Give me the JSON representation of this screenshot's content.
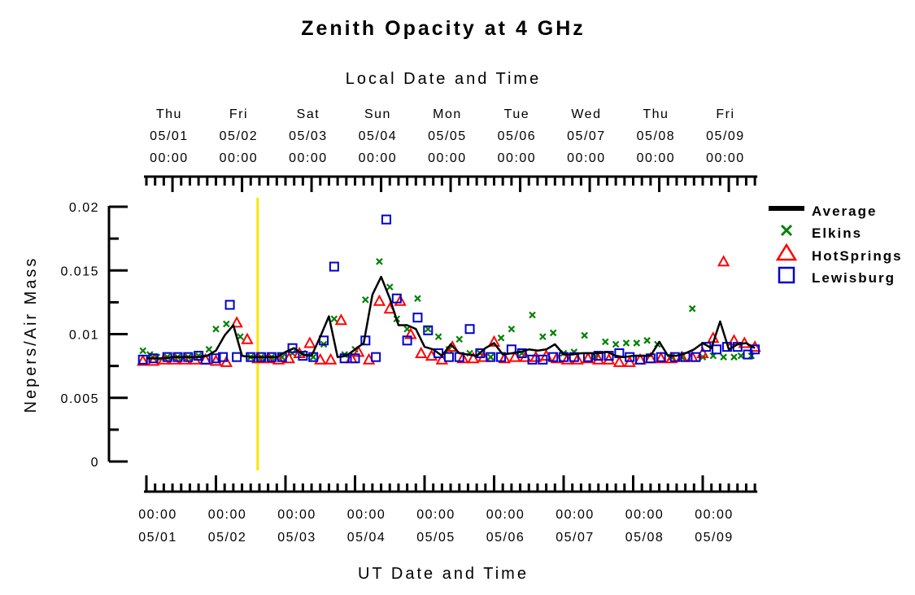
{
  "chart_data": {
    "type": "scatter",
    "title": "Zenith Opacity at 4 GHz",
    "top_axis_title": "Local Date and Time",
    "xlabel": "UT Date and Time",
    "ylabel": "Nepers/Air Mass",
    "ylim": [
      0,
      0.02
    ],
    "yticks": [
      "0",
      "0.005",
      "0.01",
      "0.015",
      "0.02"
    ],
    "ytick_values": [
      0,
      0.005,
      0.01,
      0.015,
      0.02
    ],
    "xlim": [
      0,
      8.75
    ],
    "x_units": "days after 05/01 00:00 UT",
    "top_ticks": [
      {
        "day": "Thu",
        "date": "05/01",
        "time": "00:00"
      },
      {
        "day": "Fri",
        "date": "05/02",
        "time": "00:00"
      },
      {
        "day": "Sat",
        "date": "05/03",
        "time": "00:00"
      },
      {
        "day": "Sun",
        "date": "05/04",
        "time": "00:00"
      },
      {
        "day": "Mon",
        "date": "05/05",
        "time": "00:00"
      },
      {
        "day": "Tue",
        "date": "05/06",
        "time": "00:00"
      },
      {
        "day": "Wed",
        "date": "05/07",
        "time": "00:00"
      },
      {
        "day": "Thu",
        "date": "05/08",
        "time": "00:00"
      },
      {
        "day": "Fri",
        "date": "05/09",
        "time": "00:00"
      }
    ],
    "top_tick_x": [
      0.35,
      1.35,
      2.35,
      3.35,
      4.35,
      5.35,
      6.35,
      7.35,
      8.35
    ],
    "bottom_ticks": [
      {
        "time": "00:00",
        "date": "05/01"
      },
      {
        "time": "00:00",
        "date": "05/02"
      },
      {
        "time": "00:00",
        "date": "05/03"
      },
      {
        "time": "00:00",
        "date": "05/04"
      },
      {
        "time": "00:00",
        "date": "05/05"
      },
      {
        "time": "00:00",
        "date": "05/06"
      },
      {
        "time": "00:00",
        "date": "05/07"
      },
      {
        "time": "00:00",
        "date": "05/08"
      },
      {
        "time": "00:00",
        "date": "05/09"
      }
    ],
    "bottom_tick_x": [
      0,
      1,
      2,
      3,
      4,
      5,
      6,
      7,
      8
    ],
    "marker_x": 1.6,
    "marker_color": "#f5e800",
    "legend_position": "right",
    "series": [
      {
        "name": "Average",
        "style": "line",
        "color": "#000000",
        "x": [
          0,
          0.125,
          0.25,
          0.375,
          0.5,
          0.625,
          0.75,
          0.875,
          1.0,
          1.125,
          1.25,
          1.375,
          1.5,
          1.625,
          1.75,
          1.875,
          2.0,
          2.125,
          2.25,
          2.375,
          2.5,
          2.625,
          2.75,
          2.875,
          3.0,
          3.125,
          3.25,
          3.375,
          3.5,
          3.625,
          3.75,
          3.875,
          4.0,
          4.125,
          4.25,
          4.375,
          4.5,
          4.625,
          4.75,
          4.875,
          5.0,
          5.125,
          5.25,
          5.375,
          5.5,
          5.625,
          5.75,
          5.875,
          6.0,
          6.125,
          6.25,
          6.375,
          6.5,
          6.625,
          6.75,
          6.875,
          7.0,
          7.125,
          7.25,
          7.375,
          7.5,
          7.625,
          7.75,
          7.875,
          8.0,
          8.125,
          8.25,
          8.375,
          8.5,
          8.625,
          8.75
        ],
        "y": [
          0.0081,
          0.0081,
          0.0081,
          0.0082,
          0.0082,
          0.0082,
          0.0082,
          0.0083,
          0.0087,
          0.0099,
          0.0107,
          0.0083,
          0.0082,
          0.0082,
          0.0082,
          0.0082,
          0.0086,
          0.0089,
          0.0084,
          0.0083,
          0.0098,
          0.0114,
          0.0082,
          0.0083,
          0.0088,
          0.0093,
          0.0131,
          0.0145,
          0.0128,
          0.0107,
          0.0107,
          0.0104,
          0.009,
          0.0088,
          0.0083,
          0.0092,
          0.0085,
          0.0084,
          0.0083,
          0.0089,
          0.0093,
          0.0084,
          0.0085,
          0.0086,
          0.0088,
          0.0087,
          0.0088,
          0.0092,
          0.0084,
          0.0084,
          0.0085,
          0.0085,
          0.0085,
          0.0086,
          0.0083,
          0.0082,
          0.0083,
          0.0083,
          0.0083,
          0.0094,
          0.0083,
          0.0083,
          0.0085,
          0.0088,
          0.0093,
          0.0089,
          0.011,
          0.0088,
          0.0092,
          0.0093,
          0.0089
        ]
      },
      {
        "name": "Elkins",
        "style": "x",
        "color": "#008000",
        "x": [
          -0.05,
          0.05,
          0.15,
          0.3,
          0.45,
          0.6,
          0.75,
          0.9,
          1.0,
          1.15,
          1.35,
          1.5,
          1.65,
          1.8,
          1.95,
          2.1,
          2.25,
          2.4,
          2.55,
          2.7,
          2.85,
          3.0,
          3.15,
          3.35,
          3.5,
          3.6,
          3.75,
          3.9,
          4.05,
          4.2,
          4.35,
          4.5,
          4.65,
          4.8,
          4.95,
          5.1,
          5.25,
          5.4,
          5.55,
          5.7,
          5.85,
          6.0,
          6.15,
          6.3,
          6.45,
          6.6,
          6.75,
          6.9,
          7.05,
          7.2,
          7.35,
          7.55,
          7.7,
          7.85,
          8.0,
          8.15,
          8.3,
          8.45,
          8.55,
          8.7
        ],
        "y": [
          0.0087,
          0.0084,
          0.0082,
          0.0082,
          0.0082,
          0.0082,
          0.0083,
          0.0088,
          0.0104,
          0.0108,
          0.0098,
          0.0082,
          0.0082,
          0.0082,
          0.0082,
          0.0085,
          0.0085,
          0.0082,
          0.0092,
          0.0112,
          0.0084,
          0.0088,
          0.0127,
          0.0157,
          0.0137,
          0.0112,
          0.0104,
          0.0128,
          0.0104,
          0.0098,
          0.0088,
          0.0096,
          0.0085,
          0.0085,
          0.0082,
          0.0097,
          0.0104,
          0.0085,
          0.0115,
          0.0098,
          0.0101,
          0.0085,
          0.0086,
          0.0099,
          0.0082,
          0.0094,
          0.0092,
          0.0093,
          0.0093,
          0.0095,
          0.0092,
          0.0082,
          0.0082,
          0.012,
          0.0082,
          0.0083,
          0.0082,
          0.0082,
          0.0083,
          0.0083
        ]
      },
      {
        "name": "HotSprings",
        "style": "triangle",
        "color": "#ff0000",
        "x": [
          -0.05,
          0.1,
          0.25,
          0.4,
          0.55,
          0.7,
          0.85,
          1.0,
          1.15,
          1.3,
          1.45,
          1.6,
          1.75,
          1.9,
          2.05,
          2.2,
          2.35,
          2.5,
          2.65,
          2.8,
          2.95,
          3.05,
          3.2,
          3.35,
          3.5,
          3.65,
          3.8,
          3.95,
          4.1,
          4.25,
          4.4,
          4.55,
          4.7,
          4.85,
          5.0,
          5.15,
          5.3,
          5.45,
          5.6,
          5.75,
          5.9,
          6.05,
          6.2,
          6.35,
          6.5,
          6.65,
          6.8,
          6.95,
          7.1,
          7.25,
          7.4,
          7.55,
          7.7,
          7.85,
          8.0,
          8.15,
          8.3,
          8.45,
          8.6,
          8.75
        ],
        "y": [
          0.0079,
          0.0079,
          0.008,
          0.008,
          0.008,
          0.008,
          0.008,
          0.0079,
          0.0078,
          0.0109,
          0.0096,
          0.0081,
          0.0081,
          0.008,
          0.0081,
          0.0085,
          0.0093,
          0.008,
          0.008,
          0.0111,
          0.0081,
          0.0086,
          0.008,
          0.0126,
          0.012,
          0.0126,
          0.01,
          0.0085,
          0.0083,
          0.008,
          0.009,
          0.0081,
          0.0081,
          0.0082,
          0.0094,
          0.0081,
          0.0082,
          0.0082,
          0.0082,
          0.0083,
          0.0081,
          0.008,
          0.008,
          0.0081,
          0.008,
          0.008,
          0.0078,
          0.0078,
          0.008,
          0.0081,
          0.0081,
          0.0081,
          0.0082,
          0.0082,
          0.0085,
          0.0097,
          0.0157,
          0.0095,
          0.0093,
          0.009
        ]
      },
      {
        "name": "Lewisburg",
        "style": "square",
        "color": "#0000cc",
        "x": [
          -0.05,
          0.1,
          0.3,
          0.45,
          0.6,
          0.75,
          0.85,
          1.0,
          1.1,
          1.2,
          1.3,
          1.5,
          1.65,
          1.8,
          1.95,
          2.1,
          2.25,
          2.4,
          2.55,
          2.7,
          2.85,
          3.0,
          3.15,
          3.3,
          3.45,
          3.6,
          3.75,
          3.9,
          4.05,
          4.2,
          4.35,
          4.5,
          4.65,
          4.8,
          4.95,
          5.1,
          5.25,
          5.4,
          5.55,
          5.7,
          5.85,
          6.0,
          6.15,
          6.35,
          6.5,
          6.65,
          6.8,
          6.95,
          7.1,
          7.25,
          7.4,
          7.6,
          7.75,
          7.9,
          8.05,
          8.2,
          8.35,
          8.5,
          8.65,
          8.75
        ],
        "y": [
          0.008,
          0.0081,
          0.0082,
          0.0082,
          0.0082,
          0.0083,
          0.008,
          0.0081,
          0.0082,
          0.0123,
          0.0082,
          0.0082,
          0.0082,
          0.0082,
          0.0082,
          0.0089,
          0.0083,
          0.0082,
          0.0095,
          0.0153,
          0.0081,
          0.0081,
          0.0095,
          0.0082,
          0.019,
          0.0128,
          0.0095,
          0.0113,
          0.0103,
          0.0085,
          0.0082,
          0.0082,
          0.0104,
          0.0085,
          0.0082,
          0.0082,
          0.0088,
          0.0085,
          0.008,
          0.008,
          0.0082,
          0.0082,
          0.0082,
          0.0082,
          0.0083,
          0.0083,
          0.0085,
          0.0082,
          0.008,
          0.0081,
          0.0082,
          0.0082,
          0.0082,
          0.0082,
          0.009,
          0.0088,
          0.009,
          0.009,
          0.0084,
          0.0088
        ]
      }
    ]
  }
}
